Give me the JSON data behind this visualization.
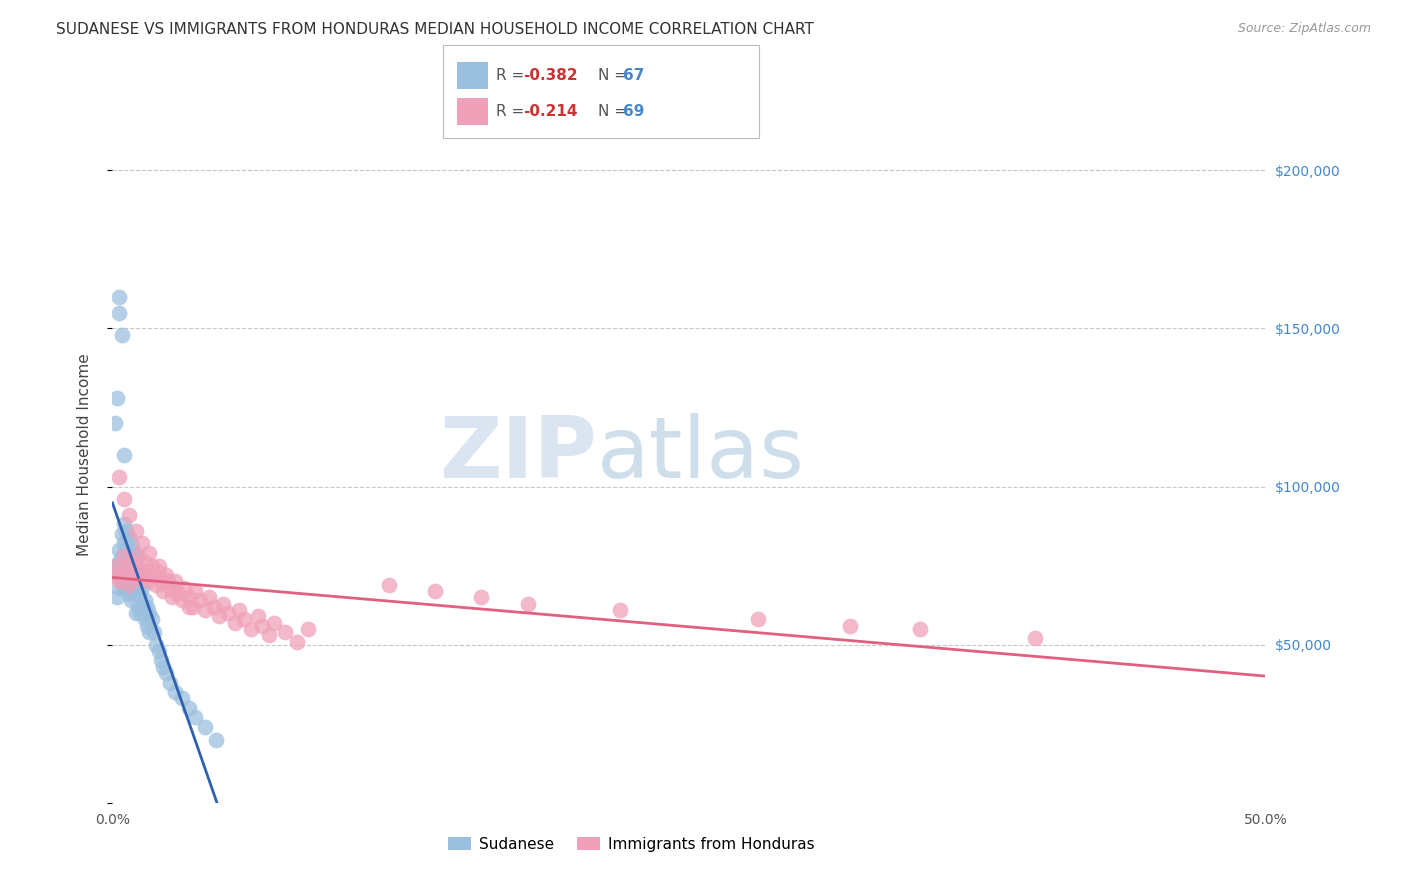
{
  "title": "SUDANESE VS IMMIGRANTS FROM HONDURAS MEDIAN HOUSEHOLD INCOME CORRELATION CHART",
  "source": "Source: ZipAtlas.com",
  "ylabel": "Median Household Income",
  "xlim": [
    0.0,
    0.5
  ],
  "ylim": [
    0,
    220000
  ],
  "yticks": [
    0,
    50000,
    100000,
    150000,
    200000
  ],
  "ytick_labels": [
    "",
    "$50,000",
    "$100,000",
    "$150,000",
    "$200,000"
  ],
  "xticks": [
    0.0,
    0.1,
    0.2,
    0.3,
    0.4,
    0.5
  ],
  "xtick_labels": [
    "0.0%",
    "",
    "",
    "",
    "",
    "50.0%"
  ],
  "background_color": "#ffffff",
  "grid_color": "#c8c8c8",
  "watermark_zip": "ZIP",
  "watermark_atlas": "atlas",
  "series1_color": "#9bbfde",
  "series2_color": "#f0a0b8",
  "line1_color": "#3060b0",
  "line2_color": "#e06080",
  "title_fontsize": 11,
  "axis_label_fontsize": 11,
  "tick_fontsize": 10,
  "right_tick_color": "#4488cc",
  "sudanese_x": [
    0.001,
    0.002,
    0.002,
    0.003,
    0.003,
    0.003,
    0.004,
    0.004,
    0.004,
    0.005,
    0.005,
    0.005,
    0.005,
    0.006,
    0.006,
    0.006,
    0.006,
    0.007,
    0.007,
    0.007,
    0.007,
    0.008,
    0.008,
    0.008,
    0.008,
    0.009,
    0.009,
    0.009,
    0.01,
    0.01,
    0.01,
    0.01,
    0.011,
    0.011,
    0.011,
    0.012,
    0.012,
    0.012,
    0.013,
    0.013,
    0.014,
    0.014,
    0.015,
    0.015,
    0.016,
    0.016,
    0.017,
    0.018,
    0.019,
    0.02,
    0.021,
    0.022,
    0.023,
    0.025,
    0.027,
    0.03,
    0.033,
    0.036,
    0.04,
    0.045,
    0.001,
    0.002,
    0.003,
    0.003,
    0.004,
    0.005
  ],
  "sudanese_y": [
    75000,
    65000,
    72000,
    80000,
    76000,
    68000,
    85000,
    78000,
    70000,
    88000,
    82000,
    75000,
    68000,
    86000,
    80000,
    74000,
    68000,
    84000,
    78000,
    72000,
    66000,
    82000,
    76000,
    70000,
    64000,
    80000,
    74000,
    68000,
    78000,
    72000,
    66000,
    60000,
    74000,
    68000,
    62000,
    72000,
    66000,
    60000,
    68000,
    62000,
    64000,
    58000,
    62000,
    56000,
    60000,
    54000,
    58000,
    54000,
    50000,
    48000,
    45000,
    43000,
    41000,
    38000,
    35000,
    33000,
    30000,
    27000,
    24000,
    20000,
    120000,
    128000,
    155000,
    160000,
    148000,
    110000
  ],
  "honduras_x": [
    0.001,
    0.002,
    0.003,
    0.004,
    0.005,
    0.006,
    0.007,
    0.008,
    0.009,
    0.01,
    0.011,
    0.012,
    0.013,
    0.014,
    0.015,
    0.016,
    0.017,
    0.018,
    0.019,
    0.02,
    0.021,
    0.022,
    0.023,
    0.025,
    0.026,
    0.027,
    0.028,
    0.03,
    0.031,
    0.033,
    0.035,
    0.036,
    0.038,
    0.04,
    0.042,
    0.044,
    0.046,
    0.048,
    0.05,
    0.053,
    0.055,
    0.057,
    0.06,
    0.063,
    0.065,
    0.068,
    0.07,
    0.075,
    0.08,
    0.085,
    0.003,
    0.005,
    0.007,
    0.01,
    0.013,
    0.016,
    0.02,
    0.024,
    0.028,
    0.033,
    0.35,
    0.4,
    0.28,
    0.32,
    0.18,
    0.22,
    0.14,
    0.16,
    0.12
  ],
  "honduras_y": [
    72000,
    75000,
    70000,
    73000,
    78000,
    72000,
    69000,
    76000,
    74000,
    71000,
    78000,
    74000,
    71000,
    76000,
    73000,
    70000,
    75000,
    72000,
    69000,
    73000,
    70000,
    67000,
    72000,
    68000,
    65000,
    70000,
    67000,
    64000,
    68000,
    65000,
    62000,
    67000,
    64000,
    61000,
    65000,
    62000,
    59000,
    63000,
    60000,
    57000,
    61000,
    58000,
    55000,
    59000,
    56000,
    53000,
    57000,
    54000,
    51000,
    55000,
    103000,
    96000,
    91000,
    86000,
    82000,
    79000,
    75000,
    70000,
    66000,
    62000,
    55000,
    52000,
    58000,
    56000,
    63000,
    61000,
    67000,
    65000,
    69000
  ]
}
